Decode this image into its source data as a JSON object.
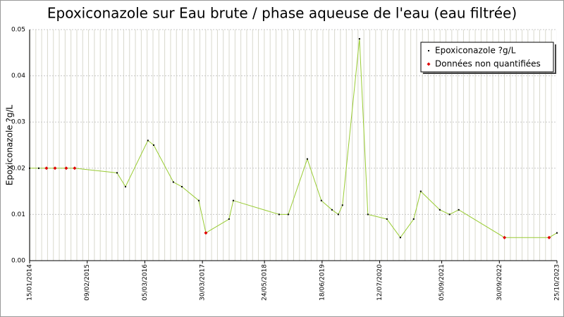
{
  "chart_data": {
    "type": "line",
    "title": "Epoxiconazole sur Eau brute / phase aqueuse de l'eau (eau filtrée)",
    "y_label": "Epoxiconazole ?g/L",
    "x": [
      "2014-01-15",
      "2014-03-18",
      "2014-05-09",
      "2014-07-06",
      "2014-09-20",
      "2014-11-16",
      "2015-08-30",
      "2015-10-26",
      "2016-03-26",
      "2016-05-04",
      "2016-09-14",
      "2016-11-11",
      "2017-03-05",
      "2017-04-22",
      "2017-09-26",
      "2017-10-25",
      "2018-08-31",
      "2018-11-01",
      "2019-03-10",
      "2019-06-13",
      "2019-08-24",
      "2019-10-06",
      "2019-11-03",
      "2020-02-26",
      "2020-04-23",
      "2020-08-30",
      "2020-11-29",
      "2021-02-27",
      "2021-04-16",
      "2021-08-23",
      "2021-10-28",
      "2021-12-29",
      "2022-11-04",
      "2023-09-02",
      "2023-10-25"
    ],
    "series": [
      {
        "name": "Epoxiconazole ?g/L",
        "color": "#000000",
        "line_color": "#99cc33",
        "values": [
          0.02,
          0.02,
          null,
          null,
          null,
          null,
          0.019,
          0.016,
          0.026,
          0.025,
          0.017,
          0.016,
          0.013,
          null,
          0.009,
          0.013,
          0.01,
          0.01,
          0.022,
          0.013,
          0.011,
          0.01,
          0.012,
          0.048,
          0.01,
          0.009,
          0.005,
          0.009,
          0.015,
          0.011,
          0.01,
          0.011,
          null,
          null,
          0.006
        ]
      },
      {
        "name": "Données non quantifiées",
        "color": "#e00000",
        "values": [
          null,
          null,
          0.02,
          0.02,
          0.02,
          0.02,
          null,
          null,
          null,
          null,
          null,
          null,
          null,
          0.006,
          null,
          null,
          null,
          null,
          null,
          null,
          null,
          null,
          null,
          null,
          null,
          null,
          null,
          null,
          null,
          null,
          null,
          null,
          0.005,
          0.005,
          null
        ]
      }
    ],
    "xlim": [
      "2014-01-15",
      "2023-10-25"
    ],
    "xticks": [
      {
        "value": "2014-01-15",
        "label": "15/01/2014"
      },
      {
        "value": "2015-02-09",
        "label": "09/02/2015"
      },
      {
        "value": "2016-03-05",
        "label": "05/03/2016"
      },
      {
        "value": "2017-03-30",
        "label": "30/03/2017"
      },
      {
        "value": "2018-05-24",
        "label": "24/05/2018"
      },
      {
        "value": "2019-06-18",
        "label": "18/06/2019"
      },
      {
        "value": "2020-07-12",
        "label": "12/07/2020"
      },
      {
        "value": "2021-09-05",
        "label": "05/09/2021"
      },
      {
        "value": "2022-09-30",
        "label": "30/09/2022"
      },
      {
        "value": "2023-10-25",
        "label": "25/10/2023"
      }
    ],
    "ylim": [
      0,
      0.05
    ],
    "yticks": [
      {
        "value": 0,
        "label": "0.00"
      },
      {
        "value": 0.01,
        "label": "0.01"
      },
      {
        "value": 0.02,
        "label": "0.02"
      },
      {
        "value": 0.03,
        "label": "0.03"
      },
      {
        "value": 0.04,
        "label": "0.04"
      },
      {
        "value": 0.05,
        "label": "0.05"
      }
    ],
    "grid": true,
    "legend": "top-right"
  }
}
